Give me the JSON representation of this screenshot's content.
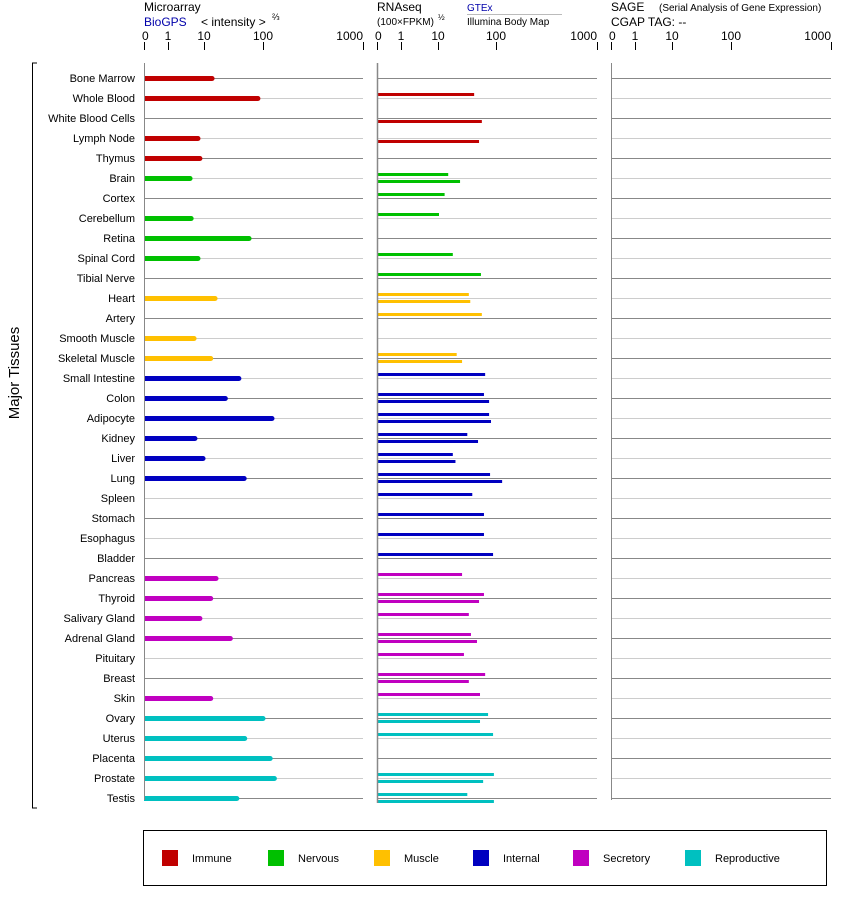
{
  "chart_data": {
    "type": "bar",
    "axis_ticks": [
      "0",
      "1",
      "10",
      "100",
      "1000"
    ],
    "tick_values": [
      0,
      1,
      10,
      100,
      1000
    ],
    "ylabel": "Major Tissues",
    "panels": {
      "microarray": {
        "title": "Microarray",
        "source": "BioGPS",
        "unit": "< intensity >",
        "unit_exp": "⅔"
      },
      "rnaseq": {
        "title": "RNAseq",
        "unit": "(100×FPKM)",
        "unit_exp": "½",
        "source_top": "GTEx",
        "source_bottom": "Illumina Body Map"
      },
      "sage": {
        "title": "SAGE",
        "subtitle": "(Serial Analysis of Gene Expression)",
        "tag": "CGAP TAG:  --"
      }
    },
    "groups": {
      "immune": {
        "label": "Immune",
        "color": "#c00000"
      },
      "nervous": {
        "label": "Nervous",
        "color": "#00c000"
      },
      "muscle": {
        "label": "Muscle",
        "color": "#ffc000"
      },
      "internal": {
        "label": "Internal",
        "color": "#0000c0"
      },
      "secretory": {
        "label": "Secretory",
        "color": "#c000c0"
      },
      "reproductive": {
        "label": "Reproductive",
        "color": "#00c0c0"
      }
    },
    "legend_order": [
      "immune",
      "nervous",
      "muscle",
      "internal",
      "secretory",
      "reproductive"
    ],
    "tissues": [
      {
        "name": "Bone Marrow",
        "group": "immune",
        "microarray": 13.7,
        "gtex": null,
        "illumina": null
      },
      {
        "name": "Whole Blood",
        "group": "immune",
        "microarray": 82,
        "gtex": 42,
        "illumina": null
      },
      {
        "name": "White Blood Cells",
        "group": "immune",
        "microarray": null,
        "gtex": null,
        "illumina": 57
      },
      {
        "name": "Lymph Node",
        "group": "immune",
        "microarray": 6.8,
        "gtex": null,
        "illumina": 51
      },
      {
        "name": "Thymus",
        "group": "immune",
        "microarray": 7.7,
        "gtex": null,
        "illumina": null
      },
      {
        "name": "Brain",
        "group": "nervous",
        "microarray": 4.1,
        "gtex": 15,
        "illumina": 24
      },
      {
        "name": "Cortex",
        "group": "nervous",
        "microarray": null,
        "gtex": 13,
        "illumina": null
      },
      {
        "name": "Cerebellum",
        "group": "nervous",
        "microarray": 4.4,
        "gtex": 10.4,
        "illumina": null
      },
      {
        "name": "Retina",
        "group": "nervous",
        "microarray": 58,
        "gtex": null,
        "illumina": null
      },
      {
        "name": "Spinal Cord",
        "group": "nervous",
        "microarray": 6.8,
        "gtex": 18,
        "illumina": null
      },
      {
        "name": "Tibial Nerve",
        "group": "nervous",
        "microarray": null,
        "gtex": 55,
        "illumina": null
      },
      {
        "name": "Heart",
        "group": "muscle",
        "microarray": 15.4,
        "gtex": 34,
        "illumina": 36
      },
      {
        "name": "Artery",
        "group": "muscle",
        "microarray": null,
        "gtex": 57,
        "illumina": null
      },
      {
        "name": "Smooth Muscle",
        "group": "muscle",
        "microarray": 5.3,
        "gtex": null,
        "illumina": null
      },
      {
        "name": "Skeletal Muscle",
        "group": "muscle",
        "microarray": 13,
        "gtex": 21,
        "illumina": 26
      },
      {
        "name": "Small Intestine",
        "group": "internal",
        "microarray": 39,
        "gtex": 65,
        "illumina": null
      },
      {
        "name": "Colon",
        "group": "internal",
        "microarray": 23,
        "gtex": 62,
        "illumina": 76
      },
      {
        "name": "Adipocyte",
        "group": "internal",
        "microarray": 123,
        "gtex": 76,
        "illumina": 82
      },
      {
        "name": "Kidney",
        "group": "internal",
        "microarray": 5.6,
        "gtex": 32,
        "illumina": 49
      },
      {
        "name": "Liver",
        "group": "internal",
        "microarray": 9.4,
        "gtex": 18,
        "illumina": 20
      },
      {
        "name": "Lung",
        "group": "internal",
        "microarray": 48,
        "gtex": 79,
        "illumina": 115
      },
      {
        "name": "Spleen",
        "group": "internal",
        "microarray": null,
        "gtex": 39,
        "illumina": null
      },
      {
        "name": "Stomach",
        "group": "internal",
        "microarray": null,
        "gtex": 62,
        "illumina": null
      },
      {
        "name": "Esophagus",
        "group": "internal",
        "microarray": null,
        "gtex": 62,
        "illumina": null
      },
      {
        "name": "Bladder",
        "group": "internal",
        "microarray": null,
        "gtex": 89,
        "illumina": null
      },
      {
        "name": "Pancreas",
        "group": "secretory",
        "microarray": 16,
        "gtex": 26,
        "illumina": null
      },
      {
        "name": "Thyroid",
        "group": "secretory",
        "microarray": 13,
        "gtex": 62,
        "illumina": 51
      },
      {
        "name": "Salivary Gland",
        "group": "secretory",
        "microarray": 7.7,
        "gtex": 34,
        "illumina": null
      },
      {
        "name": "Adrenal Gland",
        "group": "secretory",
        "microarray": 28,
        "gtex": 37,
        "illumina": 47
      },
      {
        "name": "Pituitary",
        "group": "secretory",
        "microarray": null,
        "gtex": 28,
        "illumina": null
      },
      {
        "name": "Breast",
        "group": "secretory",
        "microarray": null,
        "gtex": 65,
        "illumina": 34
      },
      {
        "name": "Skin",
        "group": "secretory",
        "microarray": 13,
        "gtex": 53,
        "illumina": null
      },
      {
        "name": "Ovary",
        "group": "reproductive",
        "microarray": 100,
        "gtex": 73,
        "illumina": 53
      },
      {
        "name": "Uterus",
        "group": "reproductive",
        "microarray": 49,
        "gtex": 89,
        "illumina": null
      },
      {
        "name": "Placenta",
        "group": "reproductive",
        "microarray": 118,
        "gtex": null,
        "illumina": null
      },
      {
        "name": "Prostate",
        "group": "reproductive",
        "microarray": 130,
        "gtex": 92,
        "illumina": 60
      },
      {
        "name": "Testis",
        "group": "reproductive",
        "microarray": 36,
        "gtex": 32,
        "illumina": 92
      }
    ]
  }
}
